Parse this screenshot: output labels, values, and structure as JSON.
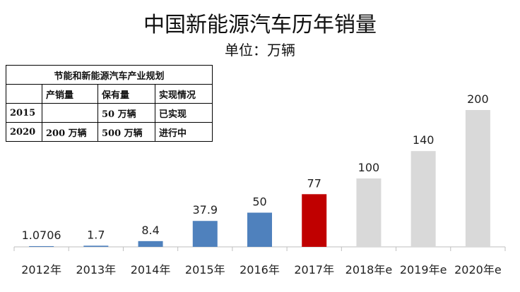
{
  "chart_data": {
    "type": "bar",
    "title": "中国新能源汽车历年销量",
    "subtitle": "单位：万辆",
    "categories": [
      "2012年",
      "2013年",
      "2014年",
      "2015年",
      "2016年",
      "2017年",
      "2018年e",
      "2019年e",
      "2020年e"
    ],
    "values": [
      1.0706,
      1.7,
      8.4,
      37.9,
      50,
      77,
      100,
      140,
      200
    ],
    "value_labels": [
      "1.0706",
      "1.7",
      "8.4",
      "37.9",
      "50",
      "77",
      "100",
      "140",
      "200"
    ],
    "bar_colors": [
      "#4f81bd",
      "#4f81bd",
      "#4f81bd",
      "#4f81bd",
      "#4f81bd",
      "#c00000",
      "#d9d9d9",
      "#d9d9d9",
      "#d9d9d9"
    ],
    "xlabel": "",
    "ylabel": "",
    "ylim": [
      0,
      200
    ],
    "grid": false,
    "legend": "none"
  },
  "plan_table": {
    "caption": "节能和新能源汽车产业规划",
    "headers": [
      "",
      "产销量",
      "保有量",
      "实现情况"
    ],
    "rows": [
      [
        "2015",
        "",
        "50 万辆",
        "已实现"
      ],
      [
        "2020",
        "200 万辆",
        "500 万辆",
        "进行中"
      ]
    ]
  }
}
